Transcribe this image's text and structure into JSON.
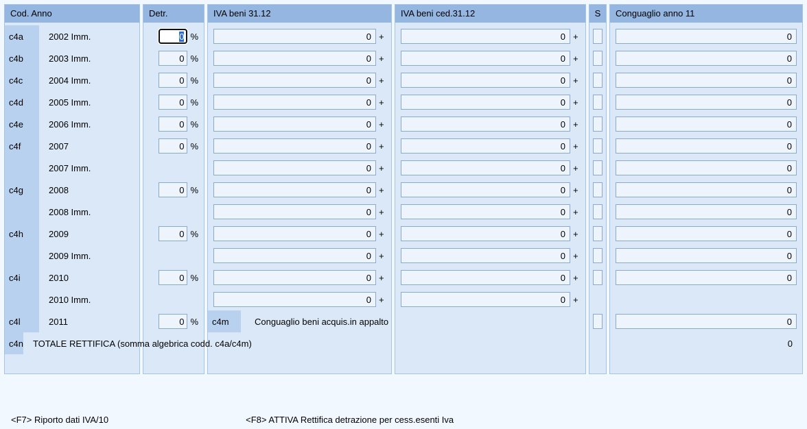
{
  "colors": {
    "panel_bg": "#dbe8f7",
    "panel_border": "#a7c3e4",
    "header_bg": "#94b6e0",
    "code_bg": "#b8d1ef",
    "input_bg": "#eef4fc",
    "input_border": "#8aa9cc",
    "focused_border": "#d9a24a",
    "focused_bg": "#ffffff",
    "body_bg": "#f2f8ff"
  },
  "headers": {
    "cod": "Cod. Anno",
    "detr": "Detr.",
    "iva1": "IVA beni 31.12",
    "iva2": "IVA beni ced.31.12",
    "s": "S",
    "cong": "Conguaglio anno 11"
  },
  "rows": [
    {
      "code": "c4a",
      "anno": "2002 Imm.",
      "detr": "0",
      "detr_focused": true,
      "iva1": "0",
      "iva2": "0",
      "s": true,
      "cong": "0"
    },
    {
      "code": "c4b",
      "anno": "2003 Imm.",
      "detr": "0",
      "iva1": "0",
      "iva2": "0",
      "s": true,
      "cong": "0"
    },
    {
      "code": "c4c",
      "anno": "2004 Imm.",
      "detr": "0",
      "iva1": "0",
      "iva2": "0",
      "s": true,
      "cong": "0"
    },
    {
      "code": "c4d",
      "anno": "2005 Imm.",
      "detr": "0",
      "iva1": "0",
      "iva2": "0",
      "s": true,
      "cong": "0"
    },
    {
      "code": "c4e",
      "anno": "2006 Imm.",
      "detr": "0",
      "iva1": "0",
      "iva2": "0",
      "s": true,
      "cong": "0"
    },
    {
      "code": "c4f",
      "anno": "2007",
      "detr": "0",
      "iva1": "0",
      "iva2": "0",
      "s": true,
      "cong": "0"
    },
    {
      "code": "",
      "anno": "2007 Imm.",
      "detr": null,
      "iva1": "0",
      "iva2": "0",
      "s": true,
      "cong": "0"
    },
    {
      "code": "c4g",
      "anno": "2008",
      "detr": "0",
      "iva1": "0",
      "iva2": "0",
      "s": true,
      "cong": "0"
    },
    {
      "code": "",
      "anno": "2008 Imm.",
      "detr": null,
      "iva1": "0",
      "iva2": "0",
      "s": true,
      "cong": "0"
    },
    {
      "code": "c4h",
      "anno": "2009",
      "detr": "0",
      "iva1": "0",
      "iva2": "0",
      "s": true,
      "cong": "0"
    },
    {
      "code": "",
      "anno": "2009 Imm.",
      "detr": null,
      "iva1": "0",
      "iva2": "0",
      "s": true,
      "cong": "0"
    },
    {
      "code": "c4i",
      "anno": "2010",
      "detr": "0",
      "iva1": "0",
      "iva2": "0",
      "s": true,
      "cong": "0"
    },
    {
      "code": "",
      "anno": "2010 Imm.",
      "detr": null,
      "iva1": "0",
      "iva2": "0",
      "s": false,
      "cong": null
    },
    {
      "code": "c4l",
      "anno": "2011",
      "detr": "0",
      "iva1_special": true,
      "iva2": null,
      "s": true,
      "cong": "0"
    }
  ],
  "c4m": {
    "code": "c4m",
    "label": "Conguaglio beni acquis.in appalto"
  },
  "c4n": {
    "code": "c4n",
    "label": "TOTALE RETTIFICA (somma algebrica codd. c4a/c4m)",
    "cong_total": "0"
  },
  "footer": {
    "f7": "<F7> Riporto dati IVA/10",
    "f8": "<F8> ATTIVA Rettifica detrazione per cess.esenti Iva"
  },
  "pct_sign": "%",
  "plus_sign": "+"
}
